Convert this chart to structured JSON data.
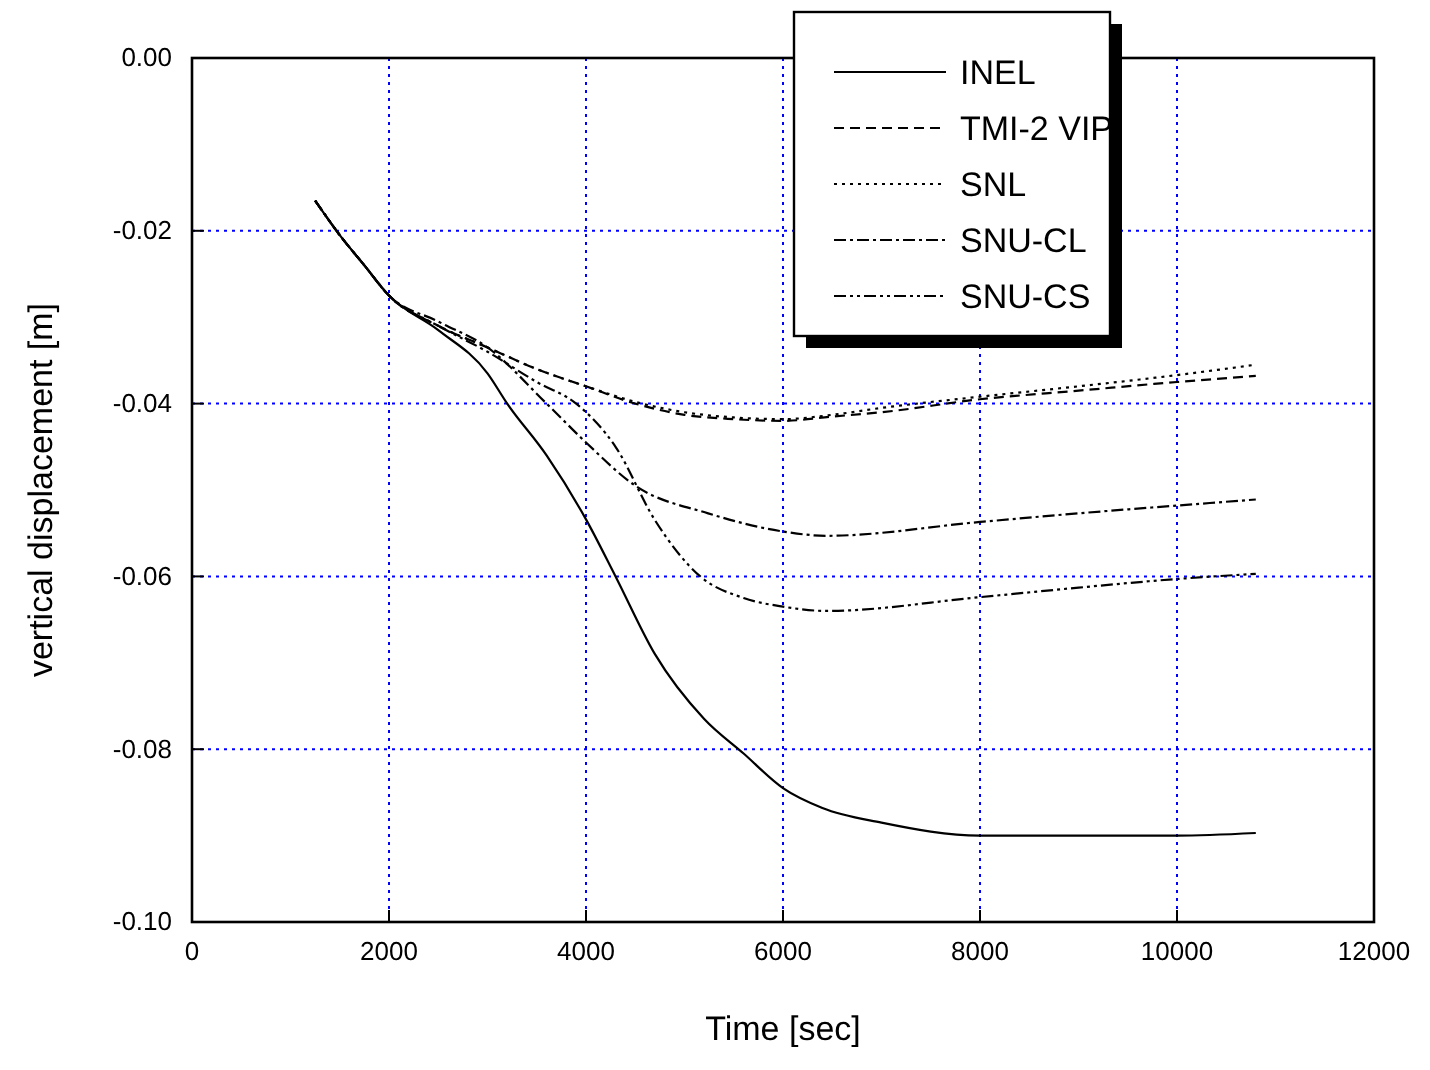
{
  "chart_data": {
    "type": "line",
    "xlabel": "Time [sec]",
    "ylabel": "vertical displacement [m]",
    "xlim": [
      0,
      12000
    ],
    "xticks": [
      0,
      2000,
      4000,
      6000,
      8000,
      10000,
      12000
    ],
    "ylim": [
      -0.1,
      0
    ],
    "yticks": [
      {
        "value": -0.1,
        "label": "-0.10"
      },
      {
        "value": -0.08,
        "label": "-0.08"
      },
      {
        "value": -0.06,
        "label": "-0.06"
      },
      {
        "value": -0.04,
        "label": "-0.04"
      },
      {
        "value": -0.02,
        "label": "-0.02"
      },
      {
        "value": 0,
        "label": "0.00"
      }
    ],
    "grid": true,
    "legend": "top right",
    "series": [
      {
        "name": "INEL",
        "color": "#000000",
        "line_style": "solid",
        "x": [
          1250,
          1500,
          1750,
          2000,
          2500,
          3000,
          3200,
          3600,
          4000,
          4300,
          4700,
          5200,
          5600,
          6000,
          6400,
          7000,
          8000,
          9000,
          10000,
          10800
        ],
        "values": [
          -0.0165,
          -0.0205,
          -0.024,
          -0.0275,
          -0.0315,
          -0.0365,
          -0.04,
          -0.046,
          -0.0534,
          -0.06,
          -0.069,
          -0.0765,
          -0.0805,
          -0.0845,
          -0.0868,
          -0.0885,
          -0.09,
          -0.09,
          -0.09,
          -0.0897
        ]
      },
      {
        "name": "TMI-2 VIP",
        "color": "#000000",
        "line_style": "dashed",
        "x": [
          1250,
          1500,
          1750,
          2000,
          2500,
          3000,
          3500,
          4000,
          4500,
          5000,
          5500,
          6000,
          6500,
          7000,
          8000,
          9000,
          10000,
          10800
        ],
        "values": [
          -0.0165,
          -0.0205,
          -0.024,
          -0.0275,
          -0.031,
          -0.0335,
          -0.036,
          -0.038,
          -0.04,
          -0.0413,
          -0.0418,
          -0.042,
          -0.0415,
          -0.041,
          -0.0395,
          -0.0385,
          -0.0375,
          -0.0368
        ]
      },
      {
        "name": "SNL",
        "color": "#000000",
        "line_style": "dotted",
        "x": [
          1250,
          1500,
          1750,
          2000,
          2500,
          3000,
          3500,
          4000,
          4500,
          5000,
          5500,
          6000,
          6500,
          7000,
          8000,
          9000,
          10000,
          10800
        ],
        "values": [
          -0.0165,
          -0.0205,
          -0.024,
          -0.0275,
          -0.031,
          -0.0335,
          -0.036,
          -0.038,
          -0.0398,
          -0.041,
          -0.0416,
          -0.0418,
          -0.0413,
          -0.0405,
          -0.0392,
          -0.038,
          -0.0367,
          -0.0355
        ]
      },
      {
        "name": "SNU-CL",
        "color": "#000000",
        "line_style": "dashdot",
        "x": [
          1250,
          1500,
          1750,
          2000,
          2500,
          3000,
          3600,
          4000,
          4500,
          5240,
          6000,
          6440,
          8000,
          9000,
          10000,
          10800
        ],
        "values": [
          -0.0165,
          -0.0205,
          -0.024,
          -0.0275,
          -0.0305,
          -0.0335,
          -0.04,
          -0.0445,
          -0.0495,
          -0.0527,
          -0.0548,
          -0.0553,
          -0.0537,
          -0.0527,
          -0.0518,
          -0.0511
        ]
      },
      {
        "name": "SNU-CS",
        "color": "#000000",
        "line_style": "dashdotdot",
        "x": [
          1250,
          1500,
          1750,
          2000,
          2500,
          3000,
          3500,
          3900,
          4300,
          4700,
          5160,
          5600,
          6000,
          6440,
          8000,
          9000,
          10000,
          10800
        ],
        "values": [
          -0.0165,
          -0.0205,
          -0.024,
          -0.0275,
          -0.031,
          -0.034,
          -0.0375,
          -0.04,
          -0.045,
          -0.0535,
          -0.06,
          -0.0625,
          -0.0635,
          -0.064,
          -0.0624,
          -0.0613,
          -0.0603,
          -0.0597
        ]
      }
    ]
  }
}
